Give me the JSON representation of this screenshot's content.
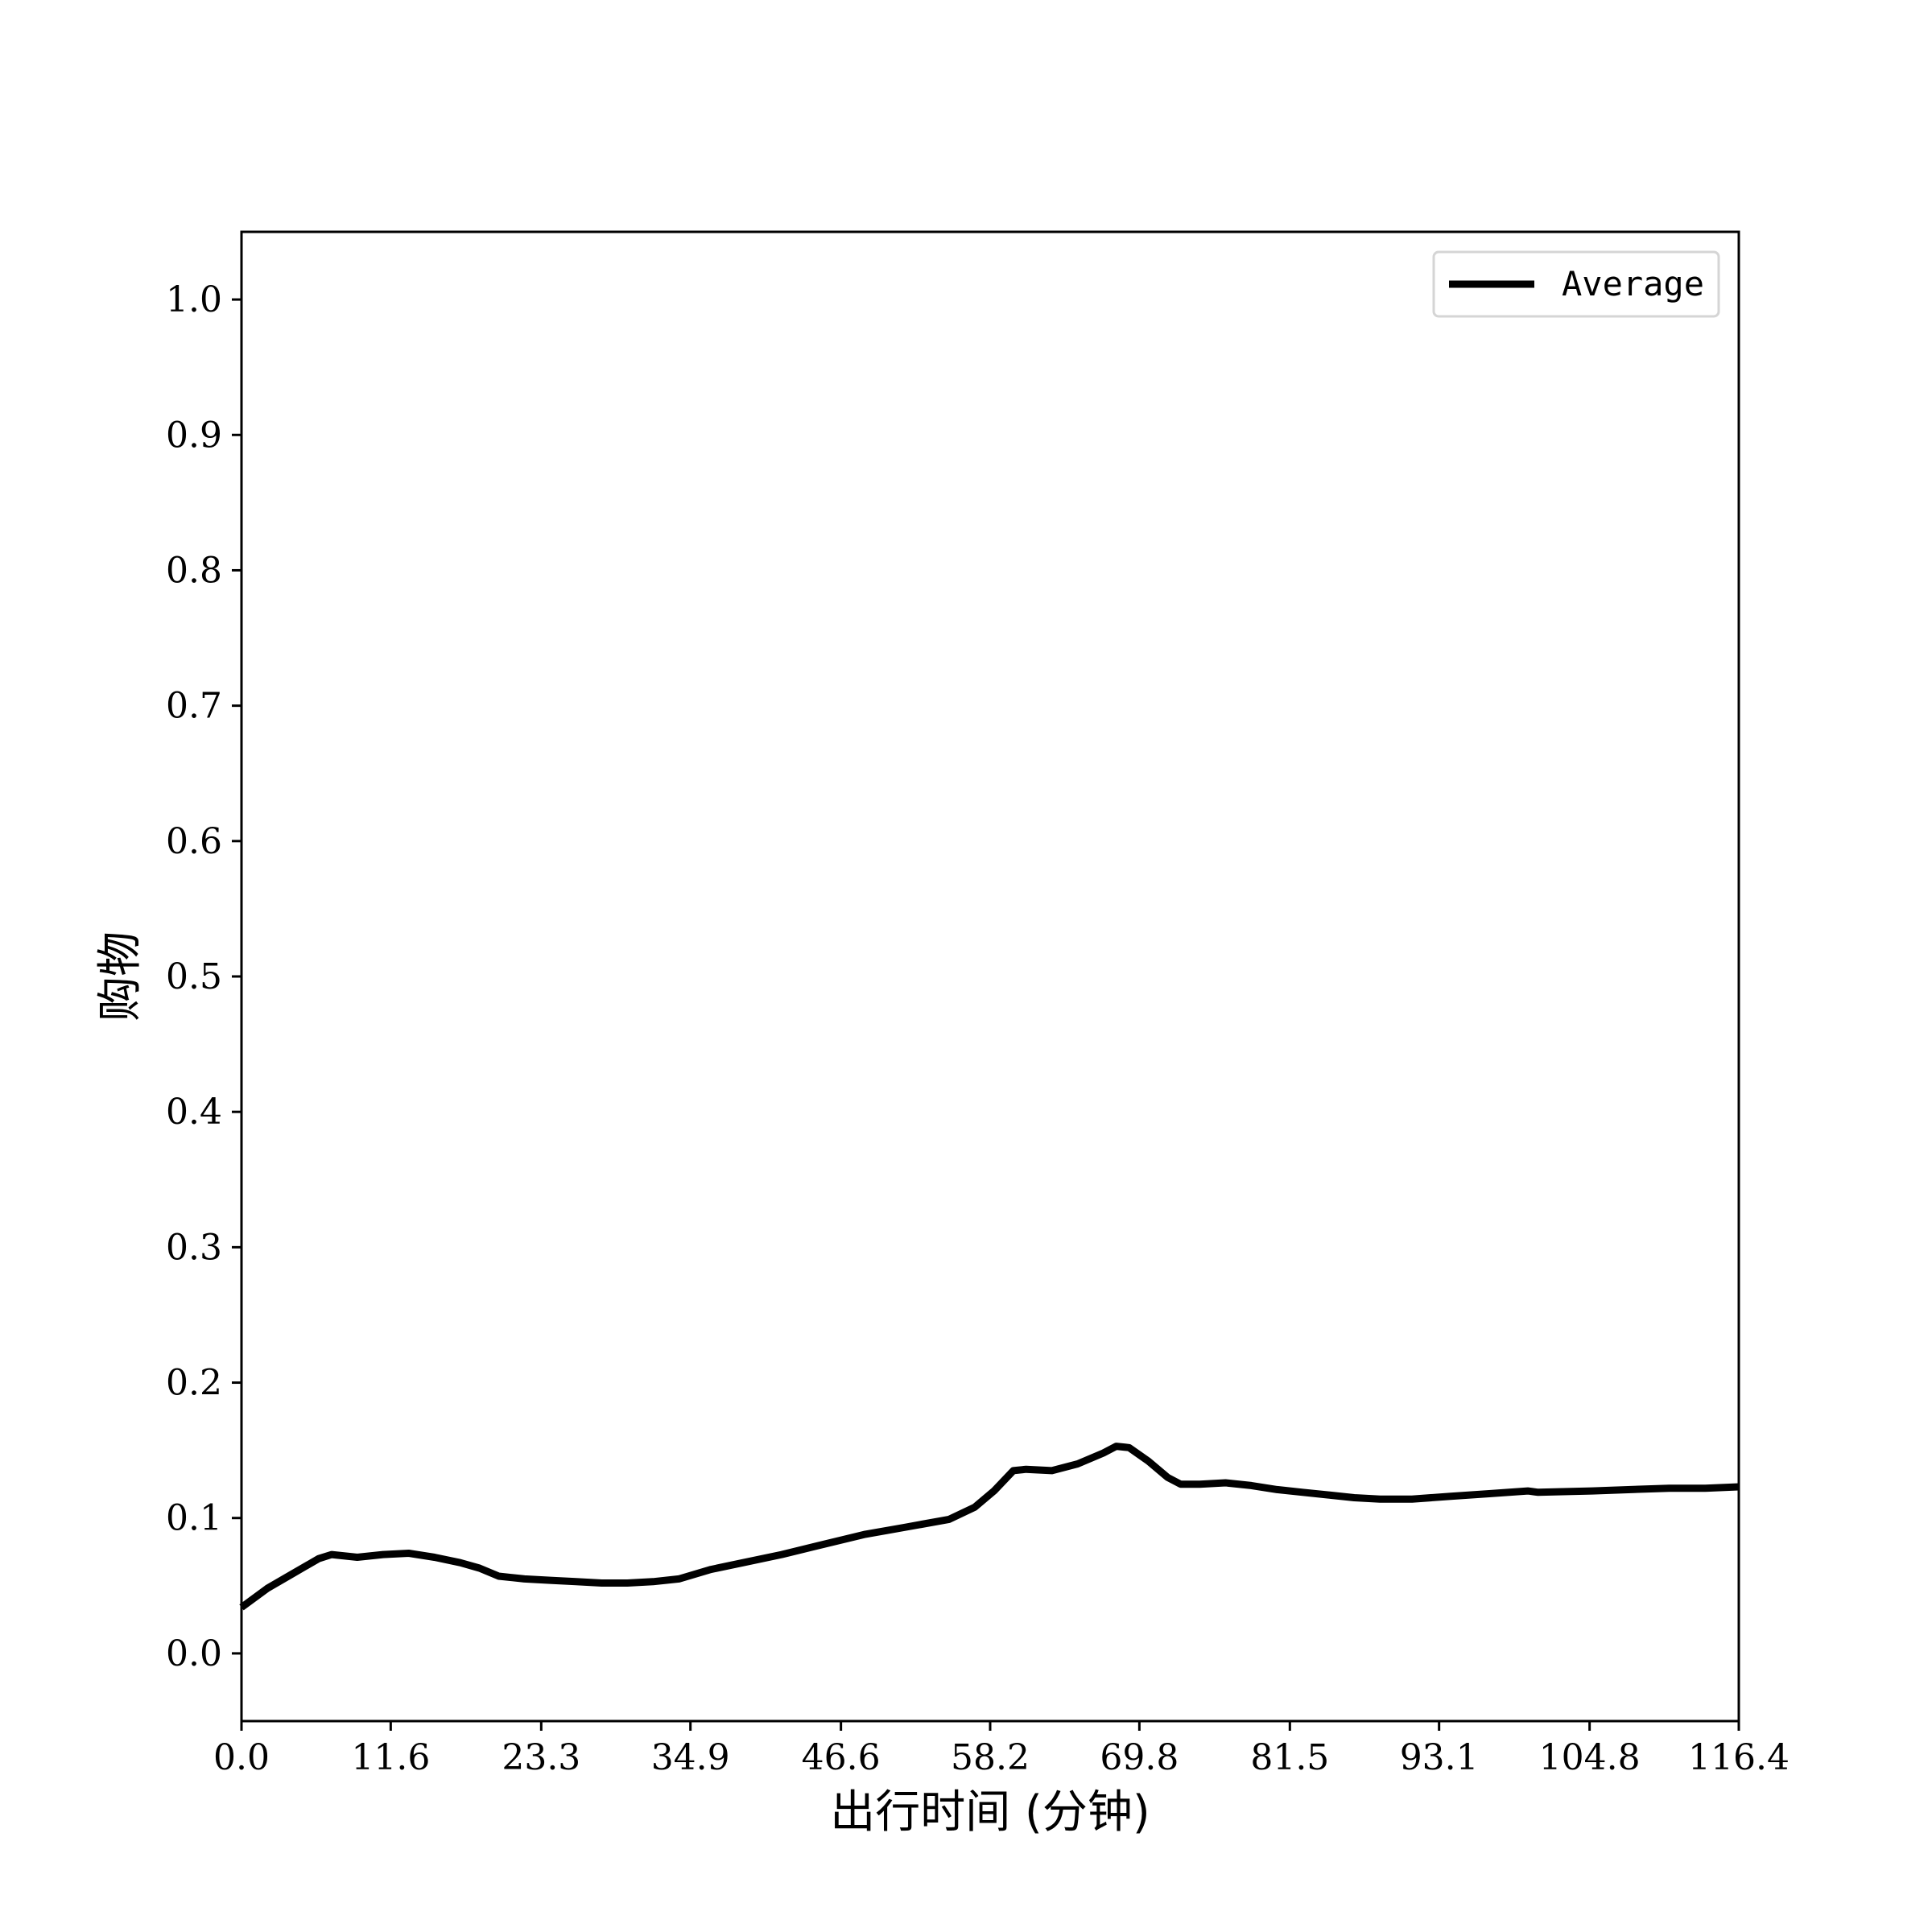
{
  "chart_data": {
    "type": "line",
    "title": "",
    "xlabel": "出行时间 (分钟)",
    "ylabel": "购物",
    "xlim": [
      0,
      116.4
    ],
    "ylim": [
      -0.05,
      1.05
    ],
    "x_ticks": [
      "0.0",
      "11.6",
      "23.3",
      "34.9",
      "46.6",
      "58.2",
      "69.8",
      "81.5",
      "93.1",
      "104.8",
      "116.4"
    ],
    "y_ticks": [
      "0.0",
      "0.1",
      "0.2",
      "0.3",
      "0.4",
      "0.5",
      "0.6",
      "0.7",
      "0.8",
      "0.9",
      "1.0"
    ],
    "grid": false,
    "legend_position": "top-right",
    "series": [
      {
        "name": "Average",
        "color": "#000000",
        "x": [
          0.0,
          2.0,
          4.0,
          6.0,
          7.0,
          9.0,
          11.0,
          13.0,
          15.0,
          17.0,
          18.5,
          20.0,
          22.0,
          24.0,
          26.0,
          28.0,
          30.0,
          32.0,
          34.0,
          36.5,
          39.0,
          42.0,
          45.0,
          48.5,
          51.5,
          55.0,
          57.0,
          58.5,
          60.0,
          61.0,
          63.0,
          65.0,
          67.0,
          68.0,
          69.0,
          70.5,
          72.0,
          73.0,
          74.5,
          76.5,
          78.5,
          80.5,
          82.5,
          84.5,
          86.5,
          88.5,
          91.0,
          94.0,
          97.0,
          100.0,
          100.8,
          105.0,
          108.0,
          111.0,
          113.8,
          116.4
        ],
        "y": [
          0.034,
          0.048,
          0.059,
          0.07,
          0.073,
          0.071,
          0.073,
          0.074,
          0.071,
          0.067,
          0.063,
          0.057,
          0.055,
          0.054,
          0.053,
          0.052,
          0.052,
          0.053,
          0.055,
          0.062,
          0.067,
          0.073,
          0.08,
          0.088,
          0.093,
          0.099,
          0.108,
          0.12,
          0.135,
          0.136,
          0.135,
          0.14,
          0.148,
          0.153,
          0.152,
          0.142,
          0.13,
          0.125,
          0.125,
          0.126,
          0.124,
          0.121,
          0.119,
          0.117,
          0.115,
          0.114,
          0.114,
          0.116,
          0.118,
          0.12,
          0.119,
          0.12,
          0.121,
          0.122,
          0.122,
          0.123
        ]
      }
    ]
  }
}
